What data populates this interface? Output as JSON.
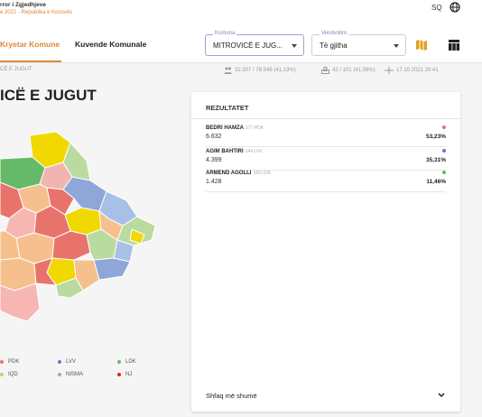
{
  "header": {
    "title": "rror i Zgjedhjeve",
    "subtitle": "e 2021 - Republika e Kosovës",
    "language": "SQ",
    "globe_icon": "globe-icon"
  },
  "tabs": [
    {
      "label": "Kryetar Komune",
      "active": true
    },
    {
      "label": "Kuvende Komunale",
      "active": false
    }
  ],
  "filters": {
    "komuna": {
      "label": "Komuna",
      "value": "MITROVICË E JUG..."
    },
    "vendvotim": {
      "label": "Vendvotim",
      "value": "Të gjitha"
    }
  },
  "breadcrumb": "CË E JUGUT",
  "stats": {
    "voters": "32.307 / 78.546 (41,13%)",
    "polling": "42 / 101 (41,58%)",
    "updated": "17.10.2021 20:41"
  },
  "page_title": "ICË E JUGUT",
  "legend": [
    {
      "label": "PDK",
      "color": "#e8736b"
    },
    {
      "label": "LVV",
      "color": "#5b7ec6"
    },
    {
      "label": "LDK",
      "color": "#67b96a"
    },
    {
      "label": "IQD",
      "color": "#b7d77a"
    },
    {
      "label": "NISMA",
      "color": "#a7a7b0"
    },
    {
      "label": "NJ",
      "color": "#d9261c"
    }
  ],
  "results": {
    "title": "REZULTATET",
    "rows": [
      {
        "name": "BEDRI HAMZA",
        "meta": "177 PDK",
        "votes": "6.632",
        "percent": "53,23%",
        "color": "#e8736b"
      },
      {
        "name": "AGIM BAHTIRI",
        "meta": "144 LVV",
        "votes": "4.399",
        "percent": "35,31%",
        "color": "#5b7ec6"
      },
      {
        "name": "ARMEND AGOLLI",
        "meta": "160 LDK",
        "votes": "1.428",
        "percent": "11,46%",
        "color": "#67b96a"
      }
    ],
    "more_label": "Shfaq më shumë"
  },
  "colors": {
    "accent": "#e0863a",
    "highlight": "#f0d800"
  }
}
